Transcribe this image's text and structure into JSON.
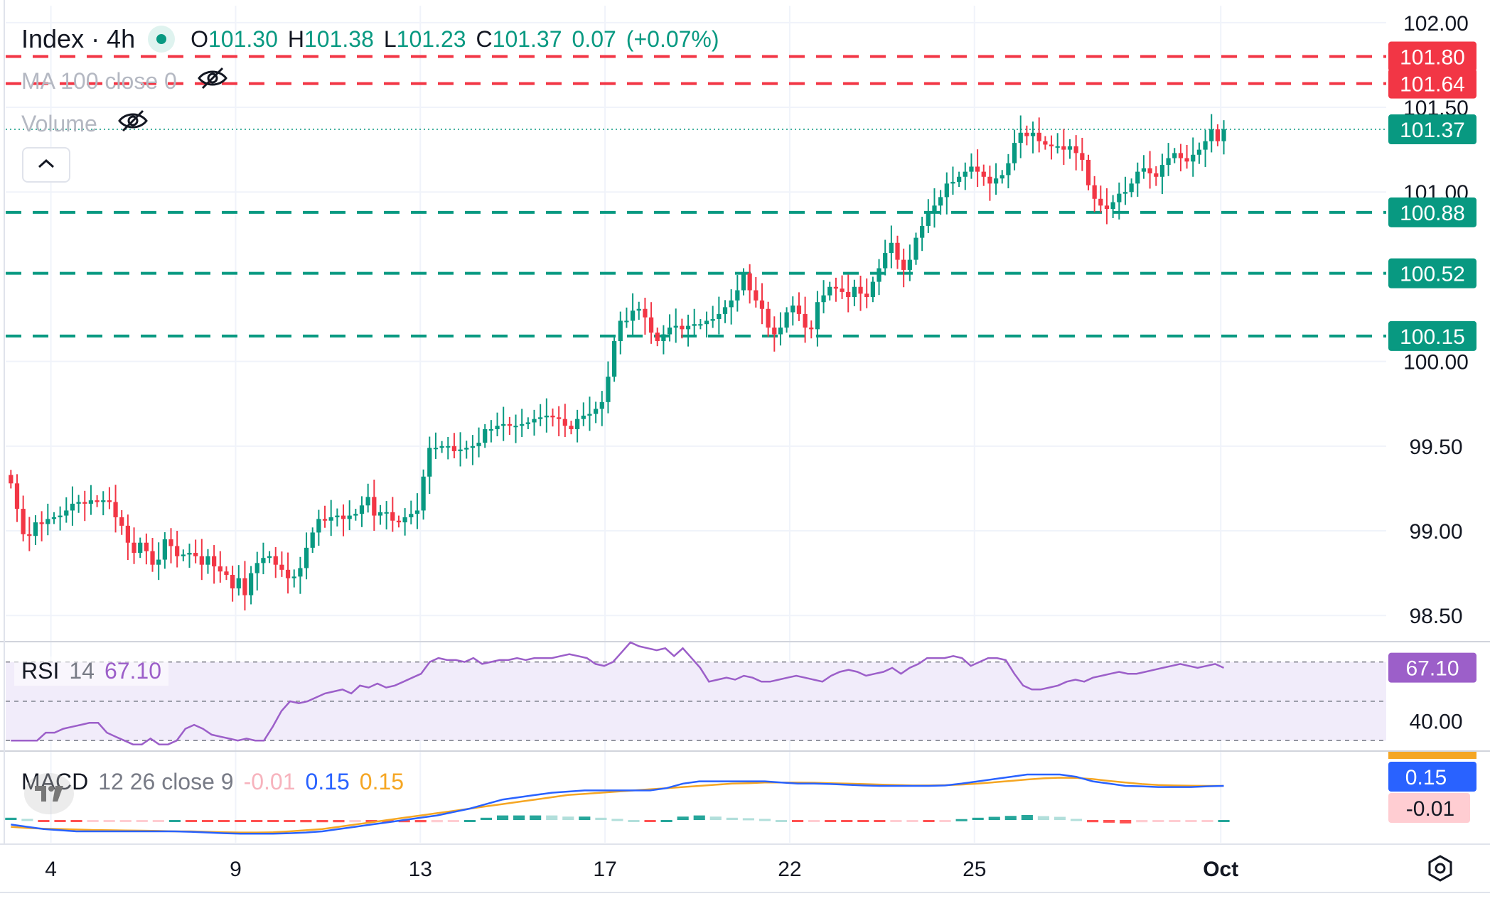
{
  "header": {
    "symbol": "Index",
    "interval": "4h",
    "title": "Index · 4h",
    "ohlc": {
      "open_label": "O",
      "open": "101.30",
      "high_label": "H",
      "high": "101.38",
      "low_label": "L",
      "low": "101.23",
      "close_label": "C",
      "close": "101.37",
      "change": "0.07",
      "change_pct": "(+0.07%)"
    }
  },
  "indicators": {
    "ma": "MA 100 close 0",
    "volume": "Volume",
    "rsi": {
      "name": "RSI",
      "period": "14",
      "value": "67.10"
    },
    "macd": {
      "name": "MACD",
      "params": "12 26 close 9",
      "histogram": "-0.01",
      "macd": "0.15",
      "signal": "0.15"
    }
  },
  "colors": {
    "up": "#089981",
    "down": "#f23645",
    "rsi_line": "#9c5fc9",
    "rsi_band": "#f1ecfa",
    "macd_line": "#2962ff",
    "signal_line": "#f5a623"
  },
  "chart_data": {
    "type": "candlestick",
    "y_ticks": [
      "102.00",
      "101.50",
      "101.00",
      "100.00",
      "99.50",
      "99.00",
      "98.50"
    ],
    "x_ticks": [
      {
        "label": "4",
        "bar": 7
      },
      {
        "label": "9",
        "bar": 37
      },
      {
        "label": "13",
        "bar": 67
      },
      {
        "label": "17",
        "bar": 97
      },
      {
        "label": "22",
        "bar": 127
      },
      {
        "label": "25",
        "bar": 157
      },
      {
        "label": "Oct",
        "bar": 197
      }
    ],
    "ylim": [
      98.35,
      102.1
    ],
    "bar_count_axis": 224,
    "resistance_levels": [
      {
        "label": "101.80",
        "value": 101.8
      },
      {
        "label": "101.64",
        "value": 101.64
      }
    ],
    "support_levels": [
      {
        "label": "100.88",
        "value": 100.88
      },
      {
        "label": "100.52",
        "value": 100.52
      },
      {
        "label": "100.15",
        "value": 100.15
      }
    ],
    "last_price": {
      "label": "101.37",
      "value": 101.37
    },
    "closes": [
      99.28,
      99.13,
      98.98,
      98.97,
      99.05,
      99.04,
      99.07,
      99.08,
      99.09,
      99.12,
      99.16,
      99.17,
      99.16,
      99.18,
      99.17,
      99.18,
      99.17,
      99.08,
      99.03,
      98.93,
      98.87,
      98.93,
      98.88,
      98.8,
      98.83,
      98.95,
      98.91,
      98.85,
      98.86,
      98.87,
      98.85,
      98.8,
      98.85,
      98.79,
      98.76,
      98.74,
      98.66,
      98.72,
      98.62,
      98.75,
      98.81,
      98.84,
      98.85,
      98.8,
      98.77,
      98.72,
      98.73,
      98.78,
      98.9,
      98.99,
      99.07,
      99.06,
      99.08,
      99.09,
      99.07,
      99.09,
      99.1,
      99.15,
      99.2,
      99.09,
      99.11,
      99.11,
      99.06,
      99.05,
      99.08,
      99.1,
      99.12,
      99.32,
      99.49,
      99.49,
      99.5,
      99.5,
      99.47,
      99.48,
      99.49,
      99.5,
      99.52,
      99.6,
      99.6,
      99.62,
      99.63,
      99.62,
      99.62,
      99.63,
      99.64,
      99.66,
      99.67,
      99.68,
      99.67,
      99.66,
      99.62,
      99.6,
      99.66,
      99.68,
      99.69,
      99.72,
      99.76,
      99.91,
      100.12,
      100.24,
      100.24,
      100.3,
      100.31,
      100.26,
      100.17,
      100.12,
      100.16,
      100.2,
      100.21,
      100.19,
      100.21,
      100.22,
      100.22,
      100.24,
      100.25,
      100.28,
      100.32,
      100.36,
      100.42,
      100.52,
      100.42,
      100.36,
      100.31,
      100.2,
      100.16,
      100.2,
      100.29,
      100.33,
      100.28,
      100.2,
      100.19,
      100.35,
      100.39,
      100.44,
      100.43,
      100.41,
      100.38,
      100.44,
      100.4,
      100.38,
      100.47,
      100.55,
      100.64,
      100.7,
      100.6,
      100.54,
      100.6,
      100.73,
      100.8,
      100.88,
      100.92,
      100.97,
      101.05,
      101.06,
      101.09,
      101.12,
      101.15,
      101.12,
      101.09,
      101.05,
      101.08,
      101.1,
      101.17,
      101.29,
      101.35,
      101.33,
      101.35,
      101.3,
      101.28,
      101.27,
      101.27,
      101.25,
      101.27,
      101.23,
      101.19,
      101.04,
      100.96,
      100.92,
      100.9,
      100.94,
      100.99,
      101.0,
      101.05,
      101.12,
      101.14,
      101.11,
      101.09,
      101.16,
      101.2,
      101.23,
      101.2,
      101.18,
      101.22,
      101.25,
      101.3,
      101.37,
      101.3,
      101.37
    ],
    "rsi": {
      "value": 67.1,
      "ticks": [
        "40.00"
      ],
      "levels": [
        70,
        50,
        30
      ],
      "ylim": [
        25,
        80
      ],
      "values": [
        30,
        30,
        30,
        30,
        34,
        34,
        36,
        37,
        38,
        39,
        39,
        34,
        32,
        30,
        28,
        28,
        31,
        28,
        28,
        30,
        36,
        38,
        36,
        33,
        32,
        31,
        30,
        31,
        30,
        30,
        37,
        45,
        50,
        49,
        50,
        52,
        54,
        55,
        56,
        54,
        58,
        57,
        59,
        57,
        58,
        60,
        62,
        64,
        70,
        72,
        71,
        71,
        70,
        72,
        69,
        70,
        71,
        71,
        72,
        71,
        72,
        72,
        72,
        73,
        74,
        73,
        72,
        69,
        68,
        70,
        75,
        80,
        78,
        77,
        76,
        77,
        73,
        77,
        72,
        67,
        60,
        61,
        62,
        61,
        63,
        62,
        60,
        60,
        61,
        62,
        63,
        62,
        61,
        60,
        63,
        65,
        66,
        65,
        63,
        64,
        65,
        67,
        64,
        67,
        69,
        72,
        72,
        72,
        73,
        72,
        68,
        70,
        72,
        72,
        71,
        64,
        58,
        56,
        56,
        57,
        58,
        60,
        61,
        60,
        62,
        63,
        64,
        65,
        64,
        64,
        65,
        66,
        67,
        68,
        69,
        68,
        67,
        68,
        69,
        67
      ],
      "x_offset_bar": 0
    },
    "macd": {
      "macd_line": [
        -0.02,
        -0.03,
        -0.04,
        -0.045,
        -0.05,
        -0.05,
        -0.05,
        -0.05,
        -0.05,
        -0.05,
        -0.05,
        -0.052,
        -0.055,
        -0.058,
        -0.06,
        -0.06,
        -0.06,
        -0.058,
        -0.055,
        -0.05,
        -0.04,
        -0.03,
        -0.02,
        -0.01,
        0.0,
        0.01,
        0.02,
        0.035,
        0.05,
        0.07,
        0.09,
        0.1,
        0.11,
        0.12,
        0.125,
        0.13,
        0.13,
        0.13,
        0.13,
        0.13,
        0.14,
        0.16,
        0.17,
        0.17,
        0.17,
        0.17,
        0.17,
        0.165,
        0.16,
        0.16,
        0.158,
        0.155,
        0.152,
        0.15,
        0.15,
        0.15,
        0.15,
        0.152,
        0.16,
        0.17,
        0.18,
        0.19,
        0.2,
        0.2,
        0.2,
        0.19,
        0.17,
        0.16,
        0.15,
        0.148,
        0.145,
        0.145,
        0.145,
        0.148,
        0.15
      ],
      "signal_line": [
        -0.03,
        -0.035,
        -0.038,
        -0.04,
        -0.042,
        -0.044,
        -0.045,
        -0.046,
        -0.047,
        -0.048,
        -0.05,
        -0.05,
        -0.052,
        -0.054,
        -0.055,
        -0.055,
        -0.054,
        -0.05,
        -0.045,
        -0.04,
        -0.03,
        -0.02,
        -0.01,
        0.0,
        0.01,
        0.02,
        0.03,
        0.04,
        0.05,
        0.06,
        0.07,
        0.08,
        0.09,
        0.1,
        0.11,
        0.115,
        0.12,
        0.125,
        0.13,
        0.135,
        0.14,
        0.145,
        0.15,
        0.155,
        0.16,
        0.162,
        0.165,
        0.165,
        0.165,
        0.164,
        0.162,
        0.16,
        0.158,
        0.156,
        0.154,
        0.152,
        0.152,
        0.153,
        0.156,
        0.16,
        0.166,
        0.172,
        0.178,
        0.183,
        0.186,
        0.185,
        0.18,
        0.172,
        0.165,
        0.158,
        0.154,
        0.152,
        0.151,
        0.15,
        0.15
      ],
      "ylim": [
        -0.1,
        0.3
      ]
    }
  },
  "bottom_bar": {
    "settings_icon": "settings-icon"
  }
}
